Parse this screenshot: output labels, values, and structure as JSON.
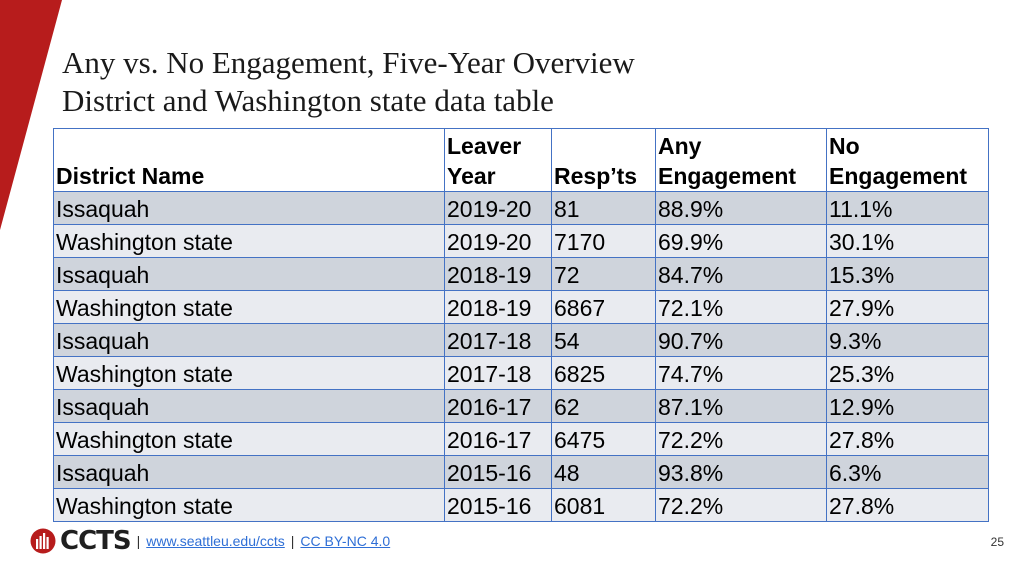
{
  "slide": {
    "title_line1": "Any vs. No Engagement, Five-Year Overview",
    "title_line2": "District and Washington state data table",
    "page_number": "25",
    "accent_color": "#b71c1c"
  },
  "table": {
    "headers": [
      {
        "line1": "",
        "line2": "District Name"
      },
      {
        "line1": "Leaver",
        "line2": "Year"
      },
      {
        "line1": "",
        "line2": "Resp’ts"
      },
      {
        "line1": "Any",
        "line2": "Engagement"
      },
      {
        "line1": "No",
        "line2": "Engagement"
      }
    ],
    "rows": [
      [
        "Issaquah",
        "2019-20",
        "81",
        "88.9%",
        "11.1%"
      ],
      [
        "Washington state",
        "2019-20",
        "7170",
        "69.9%",
        "30.1%"
      ],
      [
        "Issaquah",
        "2018-19",
        "72",
        "84.7%",
        "15.3%"
      ],
      [
        "Washington state",
        "2018-19",
        "6867",
        "72.1%",
        "27.9%"
      ],
      [
        "Issaquah",
        "2017-18",
        "54",
        "90.7%",
        "9.3%"
      ],
      [
        "Washington state",
        "2017-18",
        "6825",
        "74.7%",
        "25.3%"
      ],
      [
        "Issaquah",
        "2016-17",
        "62",
        "87.1%",
        "12.9%"
      ],
      [
        "Washington state",
        "2016-17",
        "6475",
        "72.2%",
        "27.8%"
      ],
      [
        "Issaquah",
        "2015-16",
        "48",
        "93.8%",
        "6.3%"
      ],
      [
        "Washington state",
        "2015-16",
        "6081",
        "72.2%",
        "27.8%"
      ]
    ]
  },
  "footer": {
    "logo_text": "CCTS",
    "logo_icon": "ccts-logo-icon",
    "separator": "|",
    "link_site": "www.seattleu.edu/ccts",
    "link_license": "CC BY-NC 4.0"
  }
}
